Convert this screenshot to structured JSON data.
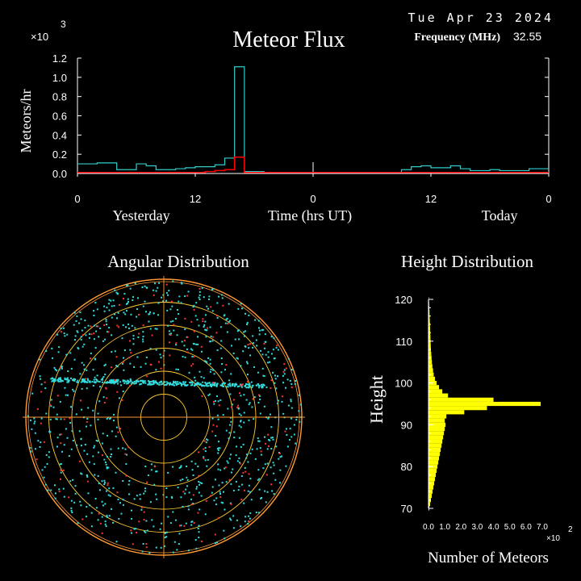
{
  "header": {
    "date": "Tue Apr 23 2024",
    "title": "Meteor Flux",
    "frequency_label": "Frequency (MHz)",
    "frequency_value": "32.55"
  },
  "colors": {
    "background": "#000000",
    "flux_total": "#33cccc",
    "flux_red": "#ff0000",
    "ring": "#ff9933",
    "ring_inner": "#ffcc33",
    "dot_cyan": "#33dddd",
    "dot_red": "#ff3333",
    "height_bar": "#ffff00",
    "axis": "#ffffff"
  },
  "chart_data": [
    {
      "type": "line",
      "id": "meteor-flux",
      "title": "Meteor Flux",
      "ylabel": "Meteors/hr",
      "xlabel": "Time (hrs UT)",
      "y_multiplier": "×10",
      "y_multiplier_exp": "3",
      "ylim": [
        0,
        1.2
      ],
      "yticks": [
        "0.0",
        "0.2",
        "0.4",
        "0.6",
        "0.8",
        "1.0",
        "1.2"
      ],
      "xlim": [
        0,
        48
      ],
      "xticks": [
        {
          "x": 0,
          "label": "0"
        },
        {
          "x": 12,
          "label": "12"
        },
        {
          "x": 24,
          "label": "0"
        },
        {
          "x": 36,
          "label": "12"
        },
        {
          "x": 48,
          "label": "0"
        }
      ],
      "day_labels": [
        {
          "x": 6.5,
          "label": "Yesterday"
        },
        {
          "x": 43,
          "label": "Today"
        }
      ],
      "x": [
        0,
        1,
        2,
        3,
        4,
        5,
        6,
        7,
        8,
        9,
        10,
        11,
        12,
        13,
        14,
        15,
        16,
        17,
        18,
        19,
        20,
        21,
        22,
        23,
        24,
        25,
        26,
        27,
        28,
        29,
        30,
        31,
        32,
        33,
        34,
        35,
        36,
        37,
        38,
        39,
        40,
        41,
        42,
        43,
        44,
        45,
        46,
        47,
        48
      ],
      "series": [
        {
          "values": [
            0.1,
            0.1,
            0.11,
            0.11,
            0.04,
            0.04,
            0.1,
            0.08,
            0.04,
            0.04,
            0.05,
            0.06,
            0.07,
            0.07,
            0.09,
            0.16,
            1.11,
            0.02,
            0.02,
            0.01,
            0.01,
            0.01,
            0.01,
            0.01,
            0.01,
            0.01,
            0.01,
            0.01,
            0.01,
            0.01,
            0.01,
            0.01,
            0.01,
            0.04,
            0.07,
            0.08,
            0.06,
            0.06,
            0.08,
            0.05,
            0.03,
            0.03,
            0.04,
            0.03,
            0.03,
            0.03,
            0.05,
            0.05,
            0.05
          ]
        },
        {
          "values": [
            0.01,
            0.01,
            0.01,
            0.01,
            0.01,
            0.01,
            0.01,
            0.01,
            0.01,
            0.01,
            0.01,
            0.01,
            0.01,
            0.02,
            0.03,
            0.04,
            0.17,
            0.01,
            0.01,
            0.01,
            0.01,
            0.01,
            0.01,
            0.01,
            0.01,
            0.01,
            0.01,
            0.01,
            0.01,
            0.01,
            0.01,
            0.01,
            0.01,
            0.01,
            0.01,
            0.01,
            0.01,
            0.01,
            0.01,
            0.01,
            0.01,
            0.01,
            0.01,
            0.01,
            0.01,
            0.01,
            0.01,
            0.01,
            0.01
          ]
        }
      ]
    },
    {
      "type": "scatter",
      "id": "angular-distribution",
      "title": "Angular Distribution",
      "rings": 6,
      "band_altitude": 0.13,
      "cyan_points": 900,
      "red_points": 180
    },
    {
      "type": "bar",
      "id": "height-distribution",
      "title": "Height Distribution",
      "ylabel": "Height",
      "xlabel": "Number of Meteors",
      "x_multiplier": "×10",
      "x_multiplier_exp": "2",
      "ylim": [
        70,
        120
      ],
      "yticks": [
        "70",
        "80",
        "90",
        "100",
        "110",
        "120"
      ],
      "xlim": [
        0,
        7
      ],
      "xticks": [
        "0.0",
        "1.0",
        "2.0",
        "3.0",
        "4.0",
        "5.0",
        "6.0",
        "7.0"
      ],
      "heights": [
        70,
        71,
        72,
        73,
        74,
        75,
        76,
        77,
        78,
        79,
        80,
        81,
        82,
        83,
        84,
        85,
        86,
        87,
        88,
        89,
        90,
        91,
        92,
        93,
        94,
        95,
        96,
        97,
        98,
        99,
        100,
        101,
        102,
        103,
        104,
        105,
        106,
        107,
        108,
        109,
        110,
        111,
        112,
        113,
        114,
        115,
        116,
        117,
        118,
        119,
        120
      ],
      "counts": [
        0.05,
        0.1,
        0.15,
        0.2,
        0.25,
        0.3,
        0.35,
        0.4,
        0.45,
        0.5,
        0.55,
        0.6,
        0.65,
        0.7,
        0.75,
        0.8,
        0.85,
        0.9,
        0.95,
        1.0,
        1.05,
        1.0,
        1.1,
        2.2,
        3.6,
        6.9,
        4.0,
        1.2,
        0.85,
        0.65,
        0.5,
        0.4,
        0.32,
        0.28,
        0.24,
        0.21,
        0.19,
        0.17,
        0.15,
        0.14,
        0.13,
        0.12,
        0.11,
        0.1,
        0.09,
        0.08,
        0.07,
        0.06,
        0.05,
        0.04,
        0.03
      ]
    }
  ]
}
